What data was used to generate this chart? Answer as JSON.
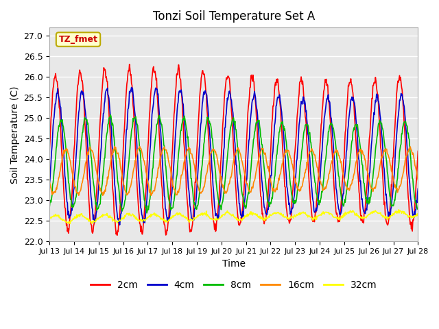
{
  "title": "Tonzi Soil Temperature Set A",
  "xlabel": "Time",
  "ylabel": "Soil Temperature (C)",
  "ylim": [
    22.0,
    27.2
  ],
  "yticks": [
    22.0,
    22.5,
    23.0,
    23.5,
    24.0,
    24.5,
    25.0,
    25.5,
    26.0,
    26.5,
    27.0
  ],
  "plot_bg_color": "#e8e8e8",
  "grid_color": "white",
  "series_colors": {
    "2cm": "#ff0000",
    "4cm": "#0000cc",
    "8cm": "#00bb00",
    "16cm": "#ff8800",
    "32cm": "#ffff00"
  },
  "annotation_text": "TZ_fmet",
  "annotation_color": "#cc0000",
  "annotation_bg": "#ffffcc",
  "annotation_border": "#bbaa00",
  "legend_labels": [
    "2cm",
    "4cm",
    "8cm",
    "16cm",
    "32cm"
  ],
  "n_points": 720,
  "days": 15,
  "base_temps": {
    "2cm": 24.2,
    "4cm": 24.1,
    "8cm": 23.9,
    "16cm": 23.7,
    "32cm": 22.55
  },
  "amplitudes": {
    "2cm": 1.85,
    "4cm": 1.5,
    "8cm": 1.05,
    "16cm": 0.52,
    "32cm": 0.08
  },
  "phase_shifts": {
    "2cm": 0.0,
    "4cm": 0.08,
    "8cm": 0.22,
    "16cm": 0.42,
    "32cm": 0.0
  },
  "noise_scales": {
    "2cm": 0.06,
    "4cm": 0.05,
    "8cm": 0.04,
    "16cm": 0.03,
    "32cm": 0.02
  },
  "trends": {
    "2cm": 0.0,
    "4cm": 0.0,
    "8cm": 0.0,
    "16cm": 0.05,
    "32cm": 0.12
  },
  "xtick_labels": [
    "Jul 13",
    "Jul 14",
    "Jul 15",
    "Jul 16",
    "Jul 17",
    "Jul 18",
    "Jul 19",
    "Jul 20",
    "Jul 21",
    "Jul 22",
    "Jul 23",
    "Jul 24",
    "Jul 25",
    "Jul 26",
    "Jul 27",
    "Jul 28"
  ]
}
